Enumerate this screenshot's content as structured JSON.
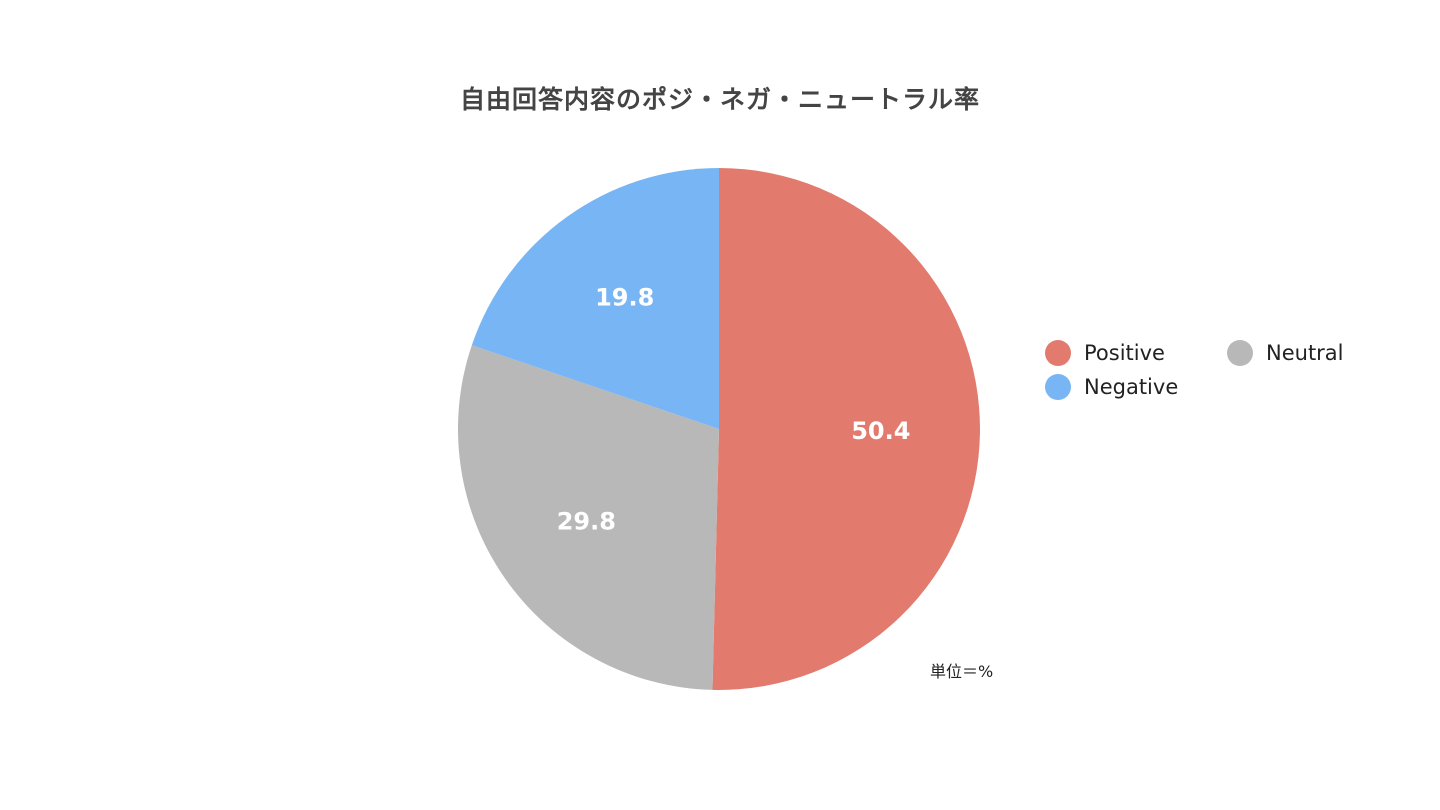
{
  "chart_data": {
    "type": "pie",
    "title": "自由回答内容のポジ・ネガ・ニュートラル率",
    "unit_note": "単位＝%",
    "slices": [
      {
        "label": "Positive",
        "value": 50.4,
        "color": "#E27B6E"
      },
      {
        "label": "Neutral",
        "value": 29.8,
        "color": "#B7B8B7"
      },
      {
        "label": "Negative",
        "value": 19.8,
        "color": "#78B5F4"
      }
    ],
    "legend": {
      "placement": "right",
      "entries": [
        {
          "label": "Positive",
          "color": "#E27B6E"
        },
        {
          "label": "Neutral",
          "color": "#B7B8B7"
        },
        {
          "label": "Negative",
          "color": "#78B5F4"
        }
      ]
    }
  }
}
